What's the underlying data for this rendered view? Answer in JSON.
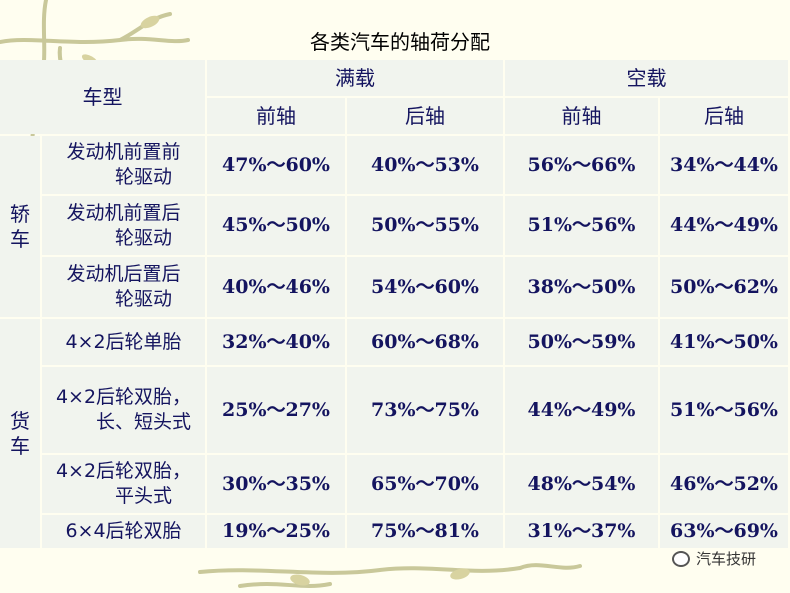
{
  "title": "各类汽车的轴荷分配",
  "header": {
    "model": "车型",
    "full_load": "满载",
    "empty_load": "空载",
    "front_axle": "前轴",
    "rear_axle": "后轴"
  },
  "groups": [
    {
      "name_lines": [
        "轿",
        "车"
      ],
      "rows": [
        {
          "type_lines": [
            "发动机前置前",
            "轮驱动"
          ],
          "values": [
            "47%～60%",
            "40%～53%",
            "56%～66%",
            "34%～44%"
          ]
        },
        {
          "type_lines": [
            "发动机前置后",
            "轮驱动"
          ],
          "values": [
            "45%～50%",
            "50%～55%",
            "51%～56%",
            "44%～49%"
          ]
        },
        {
          "type_lines": [
            "发动机后置后",
            "轮驱动"
          ],
          "values": [
            "40%～46%",
            "54%～60%",
            "38%～50%",
            "50%～62%"
          ]
        }
      ]
    },
    {
      "name_lines": [
        "货",
        "车"
      ],
      "rows": [
        {
          "type_lines": [
            "4×2后轮单胎"
          ],
          "values": [
            "32%～40%",
            "60%～68%",
            "50%～59%",
            "41%～50%"
          ]
        },
        {
          "type_lines": [
            "4×2后轮双胎，",
            "长、短头式"
          ],
          "values": [
            "25%～27%",
            "73%～75%",
            "44%～49%",
            "51%～56%"
          ]
        },
        {
          "type_lines": [
            "4×2后轮双胎，",
            "平头式"
          ],
          "values": [
            "30%～35%",
            "65%～70%",
            "48%～54%",
            "46%～52%"
          ]
        },
        {
          "type_lines": [
            "6×4后轮双胎"
          ],
          "values": [
            "19%～25%",
            "75%～81%",
            "31%～37%",
            "63%～69%"
          ]
        }
      ]
    }
  ],
  "watermark": {
    "icon": "chat-bubble-icon",
    "text": "汽车技研"
  },
  "colors": {
    "background": "#fffef0",
    "cell": "#f1f4ee",
    "text": "#14145f",
    "vine": "#c9c89a"
  }
}
